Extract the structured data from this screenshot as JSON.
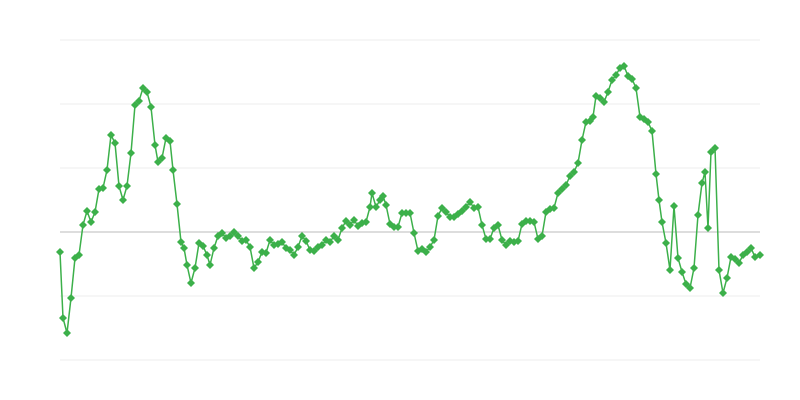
{
  "chart_data": {
    "type": "line",
    "x": [
      0,
      3,
      7,
      11,
      15,
      19,
      23,
      27,
      31,
      35,
      39,
      43,
      47,
      51,
      55,
      59,
      63,
      67,
      71,
      75,
      79,
      83,
      87,
      91,
      95,
      98,
      102,
      106,
      110,
      113,
      117,
      121,
      124,
      127,
      131,
      135,
      139,
      143,
      147,
      150,
      154,
      158,
      162,
      166,
      170,
      174,
      178,
      182,
      186,
      190,
      194,
      198,
      202,
      206,
      210,
      214,
      218,
      222,
      226,
      230,
      234,
      238,
      242,
      246,
      250,
      254,
      258,
      262,
      266,
      270,
      274,
      278,
      282,
      286,
      290,
      294,
      298,
      302,
      306,
      310,
      312,
      316,
      320,
      323,
      326,
      330,
      334,
      338,
      342,
      346,
      350,
      354,
      358,
      362,
      366,
      370,
      374,
      378,
      382,
      386,
      390,
      394,
      398,
      402,
      406,
      410,
      414,
      418,
      422,
      426,
      430,
      434,
      438,
      442,
      446,
      450,
      454,
      458,
      462,
      466,
      470,
      474,
      478,
      482,
      486,
      490,
      494,
      498,
      502,
      506,
      510,
      514,
      518,
      522,
      526,
      530,
      533,
      536,
      540,
      544,
      548,
      552,
      556,
      560,
      564,
      568,
      572,
      576,
      580,
      584,
      588,
      592,
      596,
      599,
      602,
      606,
      610,
      614,
      618,
      622,
      626,
      630,
      634,
      638,
      642,
      645,
      648,
      651,
      655,
      659,
      663,
      667,
      671,
      675,
      679,
      683,
      687,
      691,
      695,
      700
    ],
    "series": [
      {
        "color": "#3cb04a",
        "values": [
          -20,
          -86,
          -101,
          -66,
          -26,
          -23,
          7,
          21,
          10,
          20,
          43,
          44,
          62,
          97,
          89,
          46,
          32,
          46,
          79,
          127,
          131,
          144,
          140,
          125,
          87,
          70,
          74,
          94,
          91,
          62,
          28,
          -10,
          -16,
          -33,
          -51,
          -36,
          -11,
          -14,
          -23,
          -33,
          -16,
          -4,
          -1,
          -6,
          -4,
          0,
          -4,
          -9,
          -8,
          -15,
          -36,
          -30,
          -20,
          -21,
          -8,
          -13,
          -12,
          -10,
          -16,
          -18,
          -23,
          -15,
          -4,
          -9,
          -18,
          -19,
          -15,
          -13,
          -8,
          -10,
          -4,
          -8,
          4,
          11,
          7,
          12,
          6,
          9,
          10,
          25,
          39,
          25,
          32,
          36,
          27,
          8,
          5,
          5,
          19,
          19,
          19,
          -1,
          -19,
          -17,
          -20,
          -15,
          -8,
          16,
          24,
          20,
          15,
          15,
          18,
          21,
          25,
          30,
          24,
          25,
          7,
          -7,
          -7,
          4,
          7,
          -8,
          -13,
          -9,
          -10,
          -9,
          8,
          11,
          11,
          10,
          -7,
          -4,
          20,
          23,
          24,
          39,
          43,
          47,
          56,
          60,
          69,
          92,
          110,
          111,
          115,
          136,
          134,
          130,
          140,
          152,
          157,
          164,
          166,
          156,
          153,
          144,
          115,
          113,
          110,
          101,
          58,
          32,
          10,
          -11,
          -38,
          26,
          -26,
          -40,
          -52,
          -56,
          -36,
          17,
          49,
          60,
          4,
          80,
          84,
          -38,
          -61,
          -46,
          -25,
          -27,
          -31,
          -23,
          -20,
          -16,
          -25,
          -23
        ]
      }
    ],
    "xlim": [
      0,
      700
    ],
    "ylim": [
      -128,
      192
    ],
    "yticks": [
      -128,
      -64,
      0,
      64,
      128,
      192
    ],
    "grid": true
  }
}
